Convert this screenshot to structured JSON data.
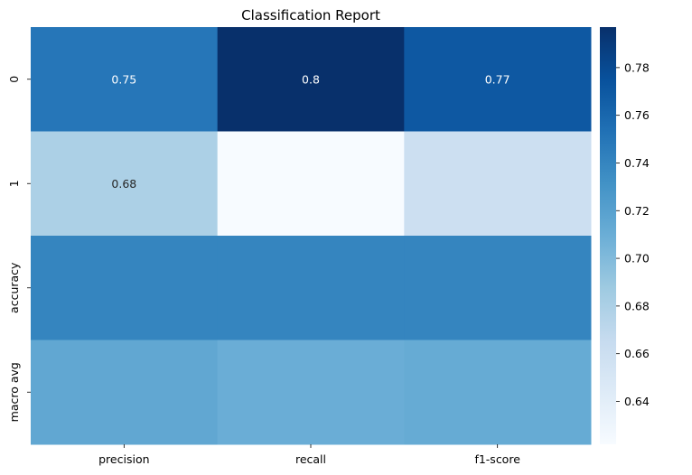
{
  "chart_data": {
    "type": "heatmap",
    "title": "Classification Report",
    "xlabel": "",
    "ylabel": "",
    "x_categories": [
      "precision",
      "recall",
      "f1-score"
    ],
    "y_categories": [
      "0",
      "1",
      "accuracy",
      "macro avg"
    ],
    "values": [
      [
        0.75,
        0.8,
        0.77
      ],
      [
        0.68,
        0.62,
        0.66
      ],
      [
        0.74,
        0.74,
        0.74
      ],
      [
        0.715,
        0.71,
        0.712
      ]
    ],
    "annotations": [
      [
        "0.75",
        "0.8",
        "0.77"
      ],
      [
        "0.68",
        "",
        ""
      ],
      [
        "",
        "",
        ""
      ],
      [
        "",
        "",
        ""
      ]
    ],
    "colormap": "Blues",
    "colorbar": {
      "vmin": 0.622,
      "vmax": 0.797,
      "ticks": [
        0.64,
        0.66,
        0.68,
        0.7,
        0.72,
        0.74,
        0.76,
        0.78
      ],
      "tick_labels": [
        "0.64",
        "0.66",
        "0.68",
        "0.70",
        "0.72",
        "0.74",
        "0.76",
        "0.78"
      ]
    }
  }
}
